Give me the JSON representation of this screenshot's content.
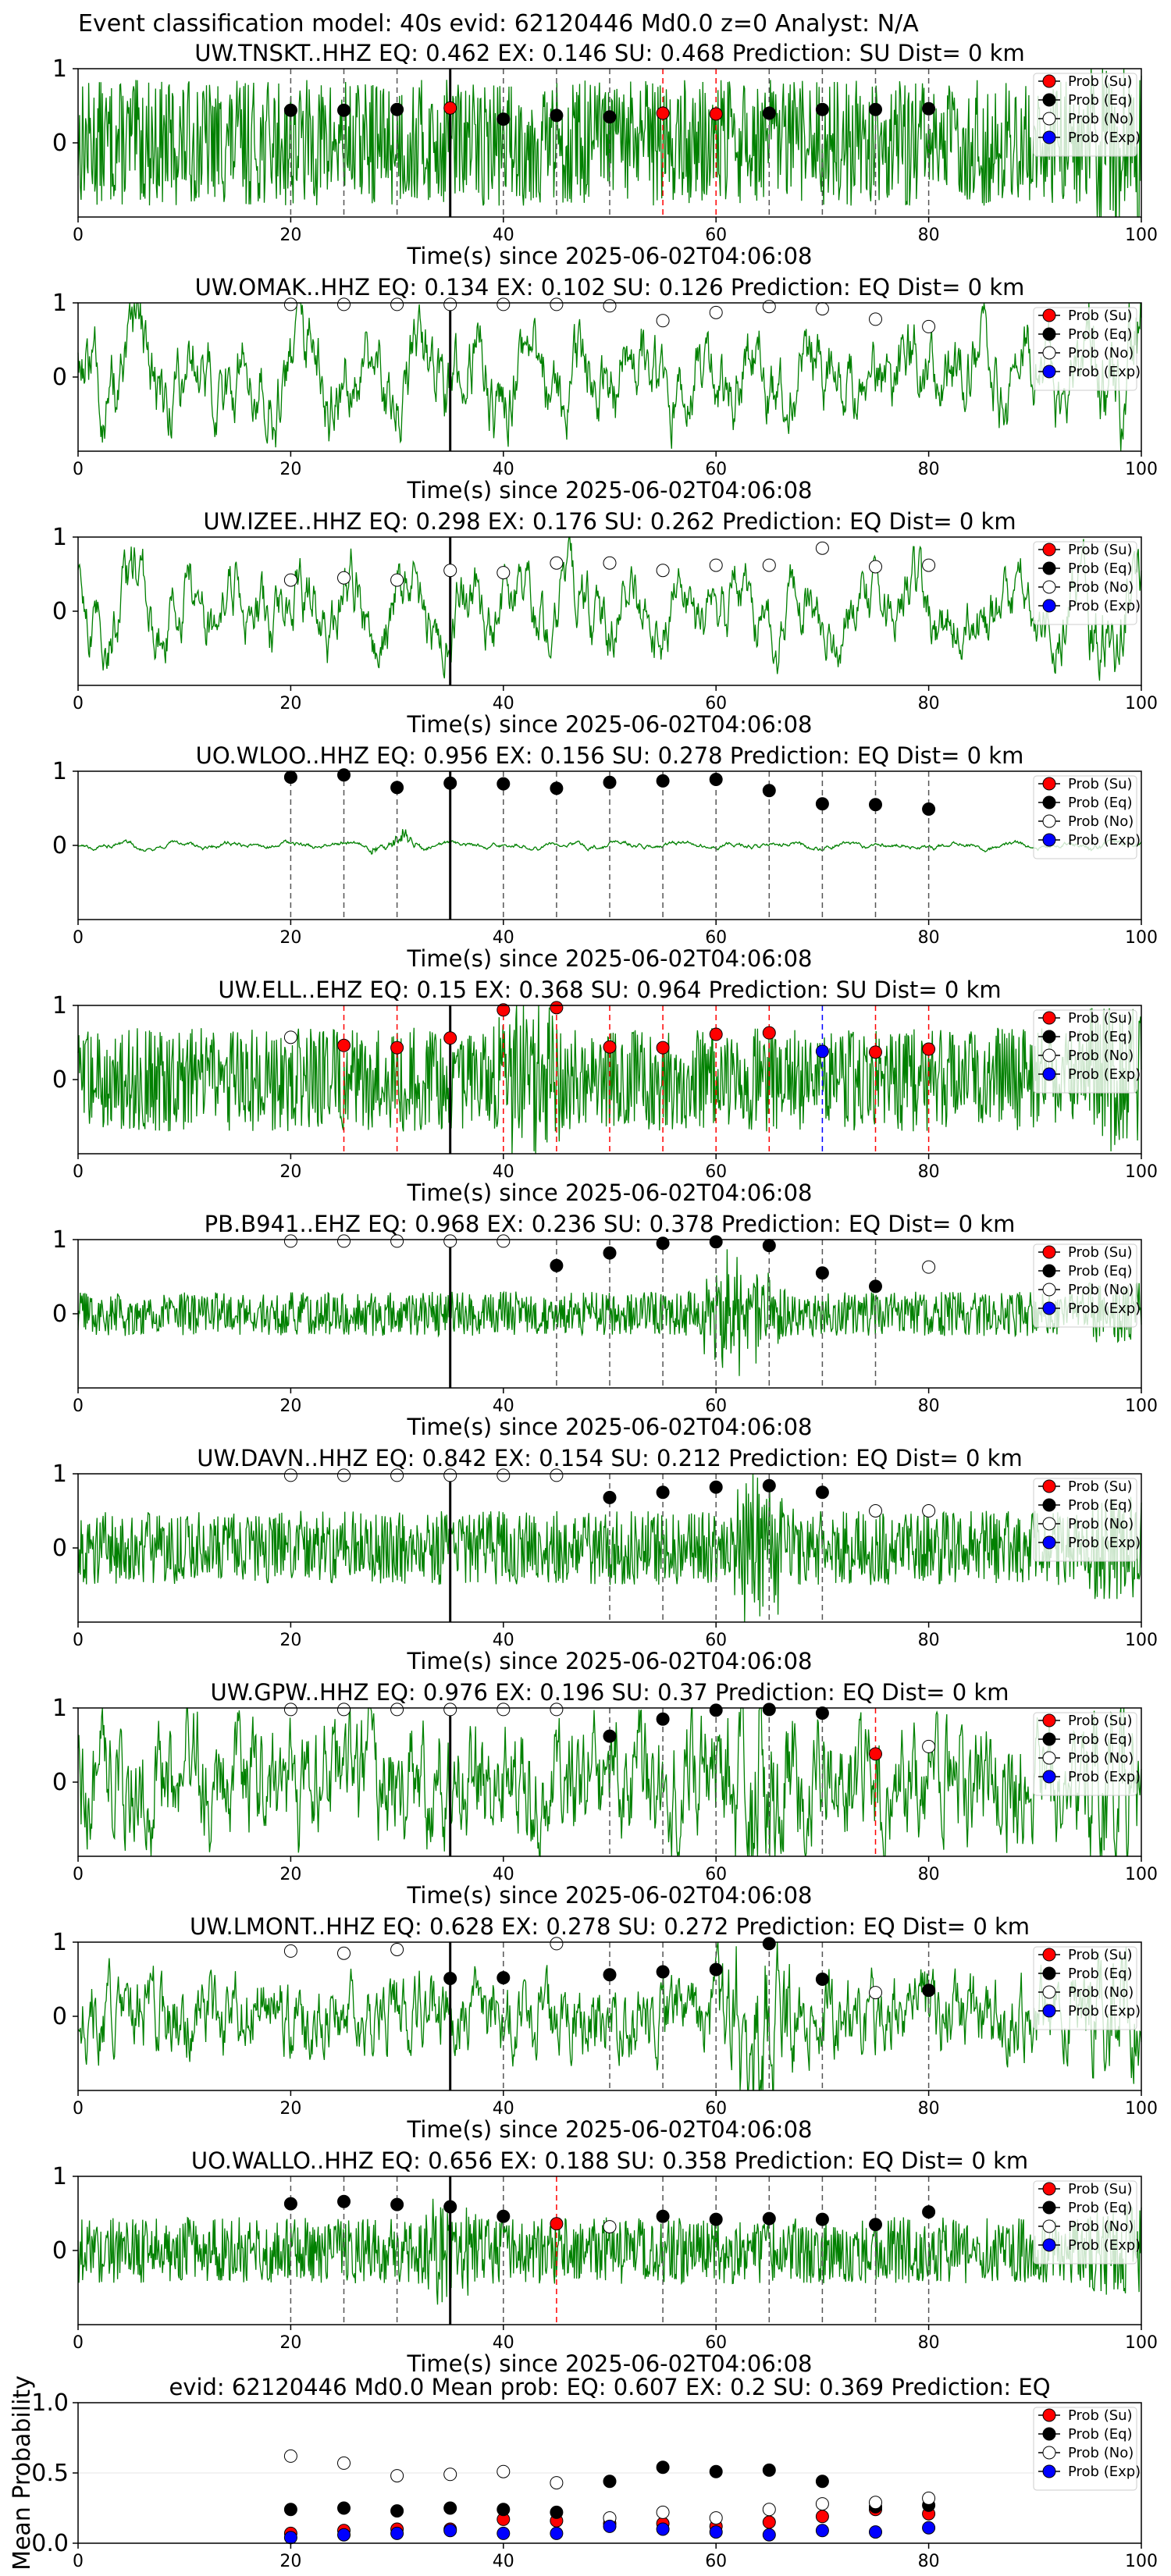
{
  "figure": {
    "suptitle": "Event classification model: 40s evid: 62120446 Md0.0 z=0 Analyst: N/A"
  },
  "legend_labels": [
    "Prob (Su)",
    "Prob (Eq)",
    "Prob (No)",
    "Prob (Exp)"
  ],
  "colors": {
    "waveform": "#008000",
    "su": "#ff0000",
    "eq": "#000000",
    "no": "#ffffff",
    "exp": "#0000ff",
    "pick_line": "#000000"
  },
  "chart_data": {
    "type": "scatter",
    "window_times": [
      20,
      25,
      30,
      35,
      40,
      45,
      50,
      55,
      60,
      65,
      70,
      75,
      80
    ],
    "pick_time": 35,
    "station_panels": [
      {
        "station": "UW.TNSKT..HHZ",
        "title": "UW.TNSKT..HHZ   EQ: 0.462  EX: 0.146  SU: 0.468   Prediction: SU    Dist= 0 km",
        "amp": 0.85,
        "smooth": 1,
        "burst": null,
        "classes": [
          "eq",
          "eq",
          "eq",
          "su",
          "eq",
          "eq",
          "eq",
          "su",
          "su",
          "eq",
          "eq",
          "eq",
          "eq"
        ],
        "probs": [
          0.44,
          0.44,
          0.45,
          0.47,
          0.32,
          0.37,
          0.35,
          0.4,
          0.39,
          0.4,
          0.45,
          0.45,
          0.46
        ]
      },
      {
        "station": "UW.OMAK..HHZ",
        "title": "UW.OMAK..HHZ   EQ: 0.134  EX: 0.102  SU: 0.126   Prediction: EQ    Dist= 0 km",
        "amp": 0.6,
        "smooth": 6,
        "burst": null,
        "classes": [
          "no",
          "no",
          "no",
          "no",
          "no",
          "no",
          "no",
          "no",
          "no",
          "no",
          "no",
          "no",
          "no"
        ],
        "probs": [
          0.98,
          0.98,
          0.98,
          0.98,
          0.98,
          0.98,
          0.96,
          0.76,
          0.87,
          0.95,
          0.92,
          0.78,
          0.68
        ]
      },
      {
        "station": "UW.IZEE..HHZ",
        "title": "UW.IZEE..HHZ   EQ: 0.298  EX: 0.176  SU: 0.262   Prediction: EQ    Dist= 0 km",
        "amp": 0.65,
        "smooth": 8,
        "burst": null,
        "classes": [
          "no",
          "no",
          "no",
          "no",
          "no",
          "no",
          "no",
          "no",
          "no",
          "no",
          "no",
          "no",
          "no"
        ],
        "probs": [
          0.42,
          0.45,
          0.42,
          0.55,
          0.52,
          0.65,
          0.65,
          0.55,
          0.62,
          0.62,
          0.85,
          0.6,
          0.62
        ]
      },
      {
        "station": "UO.WLOO..HHZ",
        "title": "UO.WLOO..HHZ   EQ: 0.956  EX: 0.156  SU: 0.278   Prediction: EQ    Dist= 0 km",
        "amp": 0.06,
        "smooth": 10,
        "burst": {
          "at": 30,
          "width": 3,
          "amp": 0.3
        },
        "classes": [
          "eq",
          "eq",
          "eq",
          "eq",
          "eq",
          "eq",
          "eq",
          "eq",
          "eq",
          "eq",
          "eq",
          "eq",
          "eq"
        ],
        "probs": [
          0.92,
          0.95,
          0.78,
          0.84,
          0.83,
          0.77,
          0.85,
          0.87,
          0.89,
          0.74,
          0.56,
          0.55,
          0.49
        ]
      },
      {
        "station": "UW.ELL..EHZ",
        "title": "UW.ELL..EHZ   EQ: 0.15  EX: 0.368  SU: 0.964   Prediction: SU    Dist= 0 km",
        "amp": 0.7,
        "smooth": 1,
        "burst": {
          "at": 42,
          "width": 4,
          "amp": 0.9
        },
        "classes": [
          "no",
          "su",
          "su",
          "su",
          "su",
          "su",
          "su",
          "su",
          "su",
          "su",
          "exp",
          "su",
          "su"
        ],
        "probs": [
          0.57,
          0.46,
          0.43,
          0.56,
          0.94,
          0.97,
          0.44,
          0.43,
          0.61,
          0.63,
          0.38,
          0.37,
          0.41
        ]
      },
      {
        "station": "PB.B941..EHZ",
        "title": "PB.B941..EHZ   EQ: 0.968  EX: 0.236  SU: 0.378   Prediction: EQ    Dist= 0 km",
        "amp": 0.3,
        "smooth": 1,
        "burst": {
          "at": 62,
          "width": 5,
          "amp": 0.8
        },
        "classes": [
          "no",
          "no",
          "no",
          "no",
          "no",
          "eq",
          "eq",
          "eq",
          "eq",
          "eq",
          "eq",
          "eq",
          "no"
        ],
        "probs": [
          0.98,
          0.98,
          0.98,
          0.98,
          0.98,
          0.65,
          0.82,
          0.95,
          0.97,
          0.92,
          0.55,
          0.37,
          0.63
        ]
      },
      {
        "station": "UW.DAVN..HHZ",
        "title": "UW.DAVN..HHZ   EQ: 0.842  EX: 0.154  SU: 0.212   Prediction: EQ    Dist= 0 km",
        "amp": 0.5,
        "smooth": 1,
        "burst": {
          "at": 64,
          "width": 4,
          "amp": 0.9
        },
        "classes": [
          "no",
          "no",
          "no",
          "no",
          "no",
          "no",
          "eq",
          "eq",
          "eq",
          "eq",
          "eq",
          "no",
          "no"
        ],
        "probs": [
          0.98,
          0.98,
          0.98,
          0.98,
          0.98,
          0.98,
          0.68,
          0.75,
          0.82,
          0.84,
          0.75,
          0.5,
          0.5
        ]
      },
      {
        "station": "UW.GPW..HHZ",
        "title": "UW.GPW..HHZ   EQ: 0.976  EX: 0.196  SU: 0.37   Prediction: EQ    Dist= 0 km",
        "amp": 0.55,
        "smooth": 3,
        "burst": {
          "at": 64,
          "width": 4,
          "amp": 0.9
        },
        "classes": [
          "no",
          "no",
          "no",
          "no",
          "no",
          "no",
          "eq",
          "eq",
          "eq",
          "eq",
          "eq",
          "su",
          "no"
        ],
        "probs": [
          0.98,
          0.98,
          0.98,
          0.98,
          0.98,
          0.98,
          0.62,
          0.85,
          0.97,
          0.98,
          0.93,
          0.38,
          0.48
        ]
      },
      {
        "station": "UW.LMONT..HHZ",
        "title": "UW.LMONT..HHZ   EQ: 0.628  EX: 0.278  SU: 0.272   Prediction: EQ    Dist= 0 km",
        "amp": 0.35,
        "smooth": 3,
        "burst": {
          "at": 64,
          "width": 4,
          "amp": 1.0
        },
        "classes": [
          "no",
          "no",
          "no",
          "eq",
          "eq",
          "no",
          "eq",
          "eq",
          "eq",
          "eq",
          "eq",
          "no",
          "eq"
        ],
        "probs": [
          0.88,
          0.85,
          0.9,
          0.51,
          0.52,
          0.98,
          0.56,
          0.6,
          0.63,
          0.98,
          0.5,
          0.32,
          0.35
        ]
      },
      {
        "station": "UO.WALLO..HHZ",
        "title": "UO.WALLO..HHZ   EQ: 0.656  EX: 0.188  SU: 0.358   Prediction: EQ    Dist= 0 km",
        "amp": 0.45,
        "smooth": 1,
        "burst": {
          "at": 35,
          "width": 3,
          "amp": 0.9
        },
        "classes": [
          "eq",
          "eq",
          "eq",
          "eq",
          "eq",
          "su",
          "no",
          "eq",
          "eq",
          "eq",
          "eq",
          "eq",
          "eq"
        ],
        "probs": [
          0.63,
          0.66,
          0.62,
          0.59,
          0.46,
          0.36,
          0.32,
          0.46,
          0.42,
          0.43,
          0.42,
          0.35,
          0.52
        ]
      }
    ],
    "panel_axes": {
      "xlim": [
        0,
        100
      ],
      "ylim": [
        -1,
        1
      ],
      "xticks": [
        0,
        20,
        40,
        60,
        80,
        100
      ],
      "yticks": [
        0,
        1
      ],
      "xlabel": "Time(s) since 2025-06-02T04:06:08",
      "legend": "top-right"
    },
    "summary": {
      "title": "evid: 62120446  Md0.0   Mean prob:   EQ: 0.607  EX: 0.2  SU: 0.369   Prediction: EQ",
      "ylabel": "Mean Probability",
      "xlim": [
        0,
        100
      ],
      "ylim": [
        0,
        1
      ],
      "xticks": [
        0,
        20,
        40,
        60,
        80,
        100
      ],
      "yticks": [
        0.0,
        0.5,
        1.0
      ],
      "ytick_labels": [
        "0.0",
        "0.5",
        "1.0"
      ],
      "legend": "top-right",
      "series": [
        {
          "name": "Prob (Su)",
          "cls": "su",
          "values": [
            0.07,
            0.09,
            0.1,
            0.1,
            0.17,
            0.16,
            0.14,
            0.14,
            0.12,
            0.15,
            0.19,
            0.24,
            0.21
          ]
        },
        {
          "name": "Prob (Eq)",
          "cls": "eq",
          "values": [
            0.24,
            0.25,
            0.23,
            0.25,
            0.24,
            0.22,
            0.44,
            0.54,
            0.51,
            0.52,
            0.44,
            0.26,
            0.27
          ]
        },
        {
          "name": "Prob (No)",
          "cls": "no",
          "values": [
            0.62,
            0.57,
            0.48,
            0.49,
            0.51,
            0.43,
            0.18,
            0.22,
            0.18,
            0.24,
            0.28,
            0.29,
            0.32
          ]
        },
        {
          "name": "Prob (Exp)",
          "cls": "exp",
          "values": [
            0.04,
            0.06,
            0.07,
            0.09,
            0.07,
            0.07,
            0.12,
            0.1,
            0.08,
            0.06,
            0.09,
            0.08,
            0.11
          ]
        }
      ]
    }
  }
}
